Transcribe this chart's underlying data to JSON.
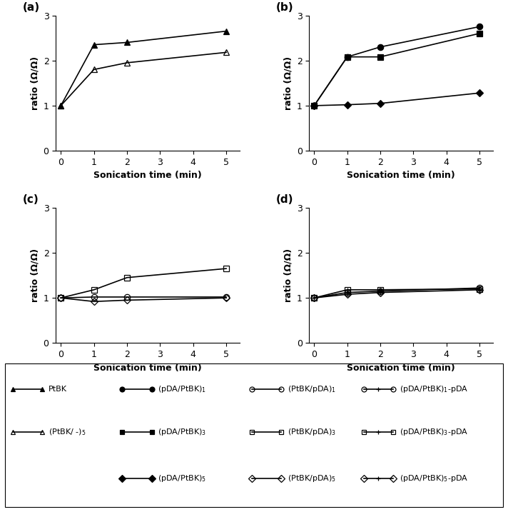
{
  "panel_a": {
    "label": "(a)",
    "series": [
      {
        "name": "PtBK",
        "x": [
          0,
          1,
          2,
          5
        ],
        "y": [
          1.0,
          2.35,
          2.4,
          2.65
        ],
        "marker": "^",
        "markersize": 6,
        "fillstyle": "full",
        "linewidth": 1.2
      },
      {
        "name": "(PtBK/-)_5",
        "x": [
          0,
          1,
          2,
          5
        ],
        "y": [
          1.0,
          1.8,
          1.95,
          2.18
        ],
        "marker": "^",
        "markersize": 6,
        "fillstyle": "none",
        "linewidth": 1.2
      }
    ]
  },
  "panel_b": {
    "label": "(b)",
    "series": [
      {
        "name": "(pDA/PtBK)_1",
        "x": [
          0,
          1,
          2,
          5
        ],
        "y": [
          1.0,
          2.08,
          2.3,
          2.75
        ],
        "marker": "o",
        "markersize": 6,
        "fillstyle": "full",
        "linewidth": 1.2
      },
      {
        "name": "(pDA/PtBK)_3",
        "x": [
          0,
          1,
          2,
          5
        ],
        "y": [
          1.0,
          2.08,
          2.08,
          2.6
        ],
        "marker": "s",
        "markersize": 6,
        "fillstyle": "full",
        "linewidth": 1.2
      },
      {
        "name": "(pDA/PtBK)_5",
        "x": [
          0,
          1,
          2,
          5
        ],
        "y": [
          1.0,
          1.02,
          1.05,
          1.28
        ],
        "marker": "D",
        "markersize": 5,
        "fillstyle": "full",
        "linewidth": 1.2
      }
    ]
  },
  "panel_c": {
    "label": "(c)",
    "series": [
      {
        "name": "(PtBK/pDA)_1",
        "x": [
          0,
          1,
          2,
          5
        ],
        "y": [
          1.0,
          1.02,
          1.02,
          1.02
        ],
        "marker": "o",
        "markersize": 6,
        "fillstyle": "none",
        "linewidth": 1.2
      },
      {
        "name": "(PtBK/pDA)_3",
        "x": [
          0,
          1,
          2,
          5
        ],
        "y": [
          1.0,
          1.18,
          1.45,
          1.65
        ],
        "marker": "s",
        "markersize": 6,
        "fillstyle": "none",
        "linewidth": 1.2
      },
      {
        "name": "(PtBK/pDA)_5",
        "x": [
          0,
          1,
          2,
          5
        ],
        "y": [
          1.0,
          0.92,
          0.95,
          1.0
        ],
        "marker": "D",
        "markersize": 5,
        "fillstyle": "none",
        "linewidth": 1.2
      }
    ]
  },
  "panel_d": {
    "label": "(d)",
    "series": [
      {
        "name": "(pDA/PtBK)_1-pDA",
        "x": [
          0,
          1,
          2,
          5
        ],
        "y": [
          1.0,
          1.12,
          1.15,
          1.22
        ],
        "marker": "o",
        "markersize": 6,
        "fillstyle": "none",
        "linewidth": 1.2,
        "crossed": true
      },
      {
        "name": "(pDA/PtBK)_3-pDA",
        "x": [
          0,
          1,
          2,
          5
        ],
        "y": [
          1.0,
          1.18,
          1.18,
          1.2
        ],
        "marker": "s",
        "markersize": 6,
        "fillstyle": "none",
        "linewidth": 1.2,
        "crossed": true
      },
      {
        "name": "(pDA/PtBK)_5-pDA",
        "x": [
          0,
          1,
          2,
          5
        ],
        "y": [
          1.0,
          1.08,
          1.12,
          1.18
        ],
        "marker": "D",
        "markersize": 5,
        "fillstyle": "none",
        "linewidth": 1.2,
        "crossed": true
      }
    ]
  },
  "xlabel": "Sonication time (min)",
  "ylabel": "ratio (Ω/Ω)",
  "xlim": [
    -0.15,
    5.4
  ],
  "ylim": [
    0,
    3
  ],
  "xticks": [
    0,
    1,
    2,
    3,
    4,
    5
  ],
  "yticks": [
    0,
    1,
    2,
    3
  ],
  "color": "black"
}
